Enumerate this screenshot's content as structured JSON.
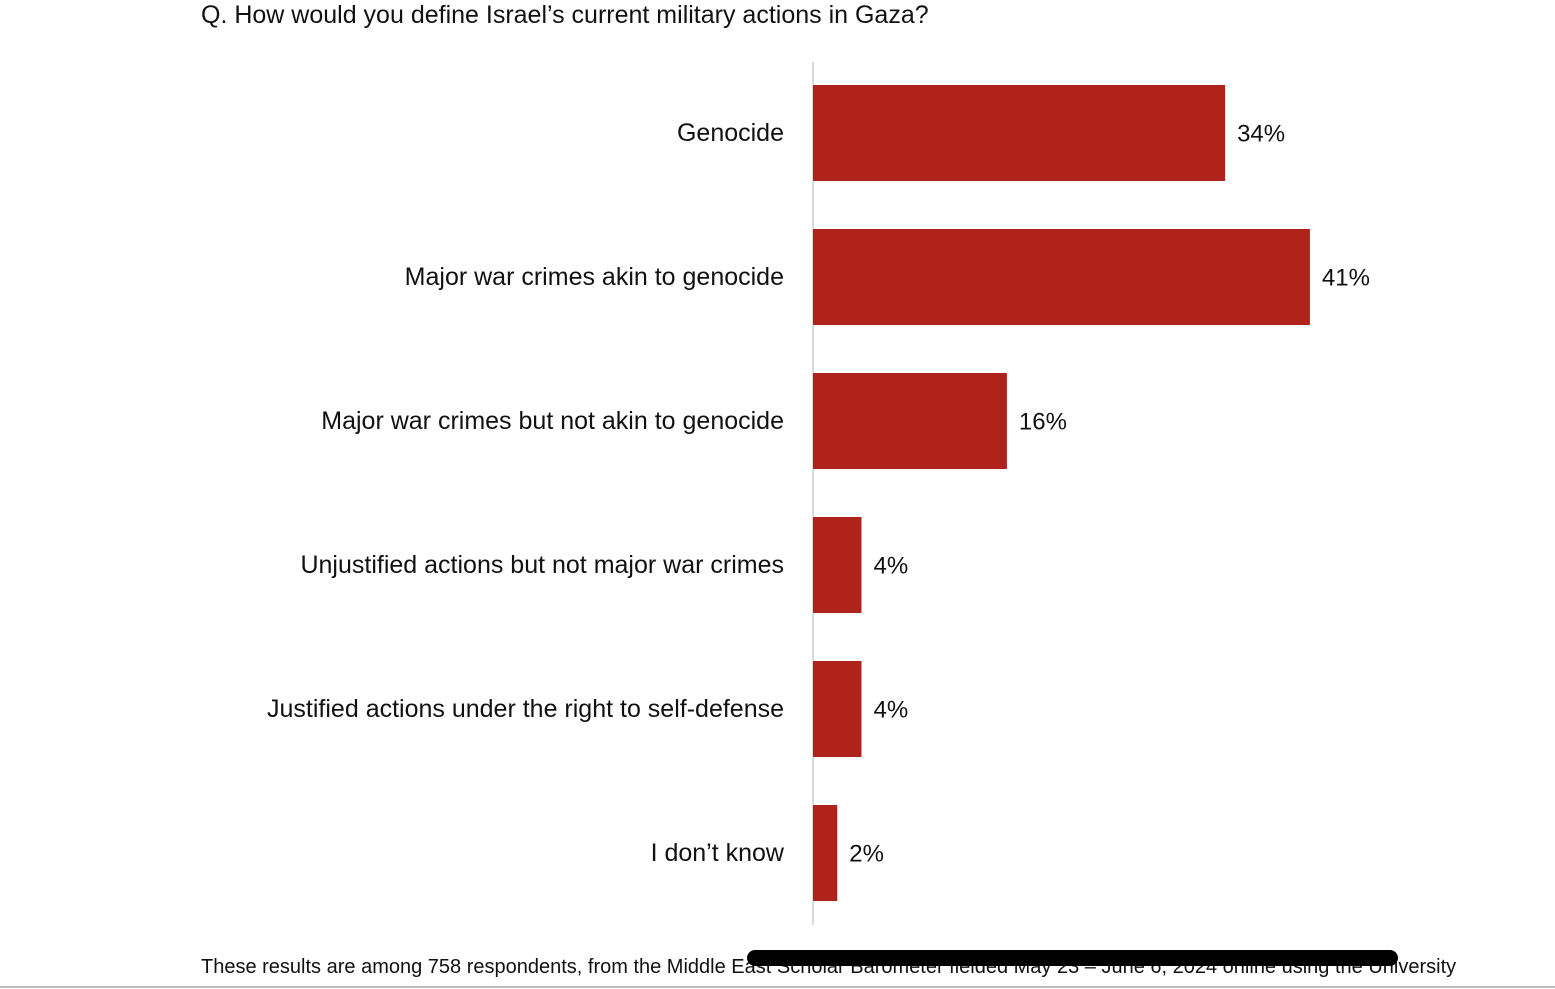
{
  "question": "Q. How would you define Israel’s current military actions in Gaza?",
  "footnote": "These results are among 758 respondents, from the Middle East Scholar Barometer fielded May 23 – June 6, 2024 online using the University",
  "colors": {
    "bar": "#b0231a",
    "axis": "#d9d9d9"
  },
  "chart_data": {
    "type": "bar",
    "orientation": "horizontal",
    "title": "Q. How would you define Israel’s current military actions in Gaza?",
    "categories": [
      "Genocide",
      "Major war crimes akin to genocide",
      "Major war crimes but not akin to genocide",
      "Unjustified actions but not major war crimes",
      "Justified actions under the right to self-defense",
      "I don’t know"
    ],
    "values": [
      34,
      41,
      16,
      4,
      4,
      2
    ],
    "value_labels": [
      "34%",
      "41%",
      "16%",
      "4%",
      "4%",
      "2%"
    ],
    "unit": "%",
    "xlim": [
      0,
      45
    ],
    "grid": false,
    "legend": "none"
  }
}
